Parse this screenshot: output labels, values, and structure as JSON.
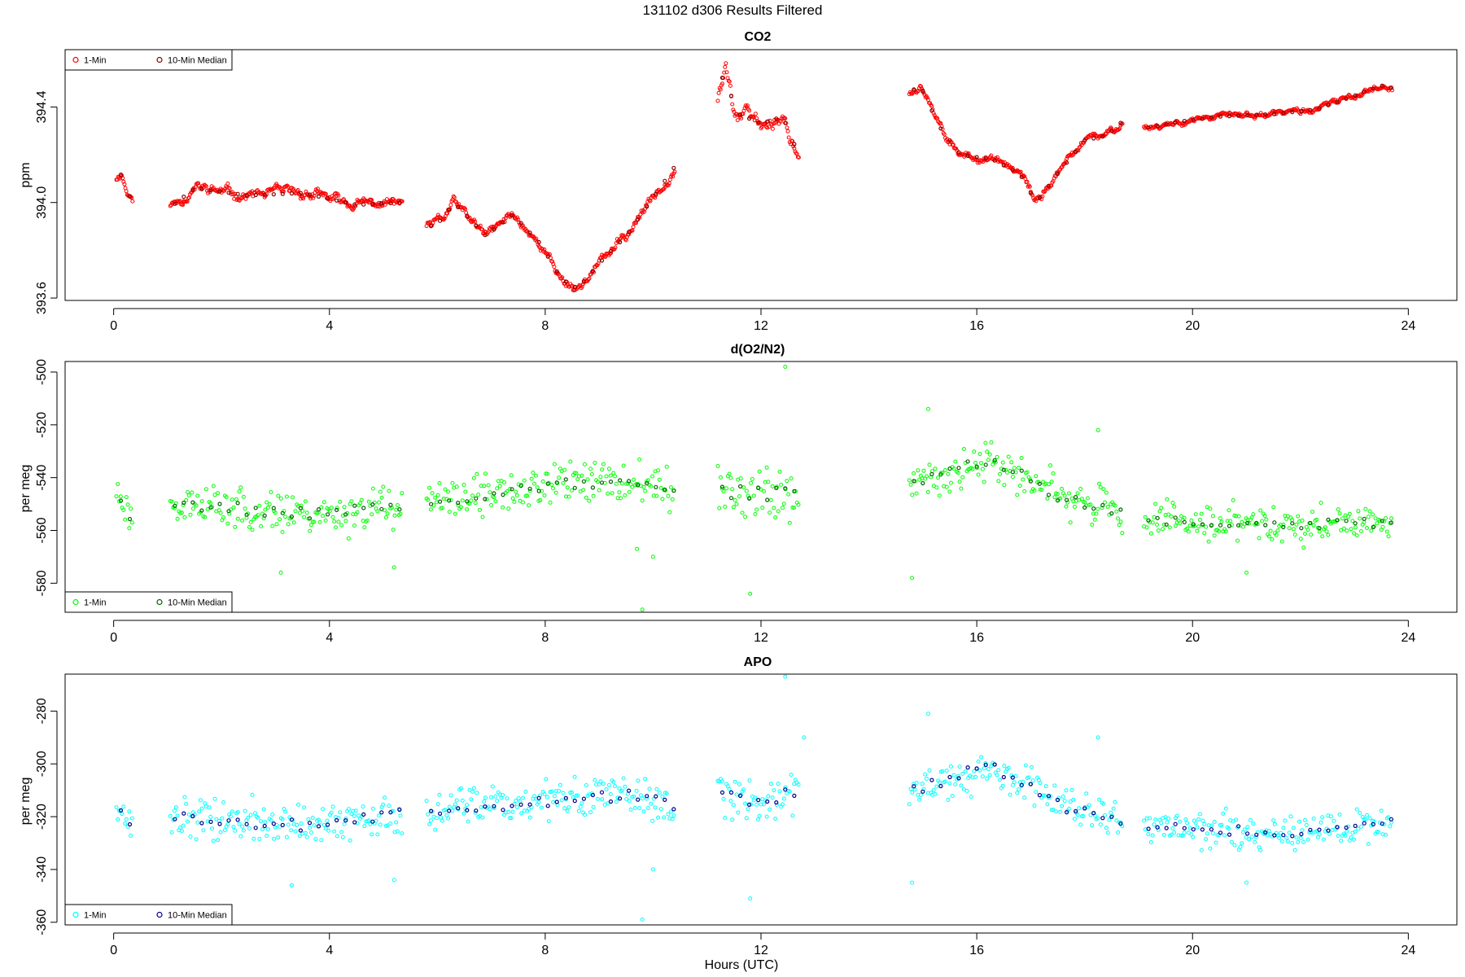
{
  "figure": {
    "title": "131102   d306   Results Filtered",
    "xlabel": "Hours (UTC)"
  },
  "chart_data": [
    {
      "type": "scatter",
      "title": "CO2",
      "ylabel": "ppm",
      "xlim": [
        -0.9,
        24.9
      ],
      "ylim": [
        393.59,
        394.64
      ],
      "xticks": [
        0,
        4,
        8,
        12,
        16,
        20,
        24
      ],
      "yticks": [
        393.6,
        394.0,
        394.4
      ],
      "ytick_labels": [
        "393.6",
        "394.0",
        "394.4"
      ],
      "colors": {
        "one_min": "#ff0000",
        "median": "#8b0000"
      },
      "legend": {
        "position": "top-left",
        "entries": [
          "1-Min",
          "10-Min Median"
        ]
      },
      "segments": [
        {
          "start": 0.05,
          "end": 0.35,
          "knots": [
            [
              0.05,
              394.1
            ],
            [
              0.15,
              394.12
            ],
            [
              0.25,
              394.04
            ],
            [
              0.35,
              394.01
            ]
          ],
          "noise": 0.015
        },
        {
          "start": 1.05,
          "end": 5.35,
          "knots": [
            [
              1.05,
              393.98
            ],
            [
              1.5,
              394.06
            ],
            [
              2.5,
              394.03
            ],
            [
              3.5,
              394.04
            ],
            [
              4.5,
              393.99
            ],
            [
              5.35,
              394.0
            ]
          ],
          "noise": 0.028
        },
        {
          "start": 5.8,
          "end": 10.4,
          "knots": [
            [
              5.8,
              393.89
            ],
            [
              6.1,
              393.93
            ],
            [
              6.3,
              394.0
            ],
            [
              6.9,
              393.86
            ],
            [
              7.4,
              393.95
            ],
            [
              7.9,
              393.83
            ],
            [
              8.3,
              393.68
            ],
            [
              8.6,
              393.64
            ],
            [
              9.1,
              393.77
            ],
            [
              9.5,
              393.86
            ],
            [
              10.0,
              394.02
            ],
            [
              10.4,
              394.15
            ]
          ],
          "noise": 0.025
        },
        {
          "start": 11.2,
          "end": 12.7,
          "knots": [
            [
              11.2,
              394.45
            ],
            [
              11.35,
              394.58
            ],
            [
              11.5,
              394.38
            ],
            [
              12.0,
              394.33
            ],
            [
              12.4,
              394.36
            ],
            [
              12.7,
              394.2
            ]
          ],
          "noise": 0.04
        },
        {
          "start": 14.75,
          "end": 18.7,
          "knots": [
            [
              14.75,
              394.46
            ],
            [
              14.95,
              394.49
            ],
            [
              15.3,
              394.32
            ],
            [
              15.7,
              394.2
            ],
            [
              16.3,
              394.18
            ],
            [
              16.8,
              394.12
            ],
            [
              17.1,
              394.0
            ],
            [
              17.5,
              394.12
            ],
            [
              18.0,
              394.26
            ],
            [
              18.4,
              394.28
            ],
            [
              18.7,
              394.34
            ]
          ],
          "noise": 0.02
        },
        {
          "start": 19.1,
          "end": 23.7,
          "knots": [
            [
              19.1,
              394.31
            ],
            [
              19.8,
              394.34
            ],
            [
              20.5,
              394.36
            ],
            [
              21.5,
              394.37
            ],
            [
              22.3,
              394.39
            ],
            [
              22.8,
              394.43
            ],
            [
              23.5,
              394.49
            ],
            [
              23.7,
              394.48
            ]
          ],
          "noise": 0.015
        }
      ],
      "outliers": [],
      "seed": 11
    },
    {
      "type": "scatter",
      "title": "d(O2/N2)",
      "ylabel": "per meg",
      "xlim": [
        -0.9,
        24.9
      ],
      "ylim": [
        -591,
        -496
      ],
      "xticks": [
        0,
        4,
        8,
        12,
        16,
        20,
        24
      ],
      "yticks": [
        -580,
        -560,
        -540,
        -520,
        -500
      ],
      "ytick_labels": [
        "-580",
        "-560",
        "-540",
        "-520",
        "-500"
      ],
      "colors": {
        "one_min": "#00ff00",
        "median": "#006400"
      },
      "legend": {
        "position": "bottom-left",
        "entries": [
          "1-Min",
          "10-Min Median"
        ]
      },
      "segments": [
        {
          "start": 0.05,
          "end": 0.35,
          "knots": [
            [
              0.05,
              -545
            ],
            [
              0.35,
              -556
            ]
          ],
          "noise": 6
        },
        {
          "start": 1.05,
          "end": 5.35,
          "knots": [
            [
              1.05,
              -550
            ],
            [
              2.5,
              -552
            ],
            [
              4.0,
              -554
            ],
            [
              5.35,
              -550
            ]
          ],
          "noise": 7
        },
        {
          "start": 5.8,
          "end": 10.4,
          "knots": [
            [
              5.8,
              -550
            ],
            [
              7.0,
              -546
            ],
            [
              8.5,
              -542
            ],
            [
              9.8,
              -542
            ],
            [
              10.4,
              -546
            ]
          ],
          "noise": 7
        },
        {
          "start": 11.2,
          "end": 12.7,
          "knots": [
            [
              11.2,
              -545
            ],
            [
              12.0,
              -546
            ],
            [
              12.7,
              -547
            ]
          ],
          "noise": 9
        },
        {
          "start": 14.75,
          "end": 18.7,
          "knots": [
            [
              14.75,
              -543
            ],
            [
              15.5,
              -538
            ],
            [
              16.2,
              -533
            ],
            [
              17.0,
              -541
            ],
            [
              17.6,
              -548
            ],
            [
              18.7,
              -553
            ]
          ],
          "noise": 7
        },
        {
          "start": 19.1,
          "end": 23.7,
          "knots": [
            [
              19.1,
              -556
            ],
            [
              20.5,
              -557
            ],
            [
              22.0,
              -558
            ],
            [
              23.7,
              -557
            ]
          ],
          "noise": 6
        }
      ],
      "outliers": [
        [
          12.45,
          -498
        ],
        [
          9.8,
          -590
        ],
        [
          11.8,
          -584
        ],
        [
          14.8,
          -578
        ],
        [
          15.1,
          -514
        ],
        [
          3.1,
          -576
        ],
        [
          9.7,
          -567
        ],
        [
          10.0,
          -570
        ],
        [
          18.25,
          -522
        ],
        [
          21.0,
          -576
        ],
        [
          5.2,
          -574
        ]
      ],
      "seed": 23
    },
    {
      "type": "scatter",
      "title": "APO",
      "ylabel": "per meg",
      "xlim": [
        -0.9,
        24.9
      ],
      "ylim": [
        -361,
        -266
      ],
      "xticks": [
        0,
        4,
        8,
        12,
        16,
        20,
        24
      ],
      "yticks": [
        -360,
        -340,
        -320,
        -300,
        -280
      ],
      "ytick_labels": [
        "-360",
        "-340",
        "-320",
        "-300",
        "-280"
      ],
      "colors": {
        "one_min": "#00ffff",
        "median": "#00008b"
      },
      "legend": {
        "position": "bottom-left",
        "entries": [
          "1-Min",
          "10-Min Median"
        ]
      },
      "segments": [
        {
          "start": 0.05,
          "end": 0.35,
          "knots": [
            [
              0.05,
              -314
            ],
            [
              0.35,
              -325
            ]
          ],
          "noise": 5
        },
        {
          "start": 1.05,
          "end": 5.35,
          "knots": [
            [
              1.05,
              -320
            ],
            [
              2.5,
              -322
            ],
            [
              4.0,
              -324
            ],
            [
              5.35,
              -318
            ]
          ],
          "noise": 7
        },
        {
          "start": 5.8,
          "end": 10.4,
          "knots": [
            [
              5.8,
              -318
            ],
            [
              7.0,
              -316
            ],
            [
              8.5,
              -313
            ],
            [
              9.8,
              -312
            ],
            [
              10.4,
              -316
            ]
          ],
          "noise": 7
        },
        {
          "start": 11.2,
          "end": 12.7,
          "knots": [
            [
              11.2,
              -312
            ],
            [
              12.0,
              -314
            ],
            [
              12.7,
              -310
            ]
          ],
          "noise": 9
        },
        {
          "start": 14.75,
          "end": 18.7,
          "knots": [
            [
              14.75,
              -310
            ],
            [
              15.5,
              -306
            ],
            [
              16.2,
              -300
            ],
            [
              17.0,
              -308
            ],
            [
              17.6,
              -316
            ],
            [
              18.7,
              -322
            ]
          ],
          "noise": 7
        },
        {
          "start": 19.1,
          "end": 23.7,
          "knots": [
            [
              19.1,
              -324
            ],
            [
              20.5,
              -325
            ],
            [
              22.0,
              -326
            ],
            [
              23.7,
              -322
            ]
          ],
          "noise": 6
        }
      ],
      "outliers": [
        [
          12.45,
          -267
        ],
        [
          9.8,
          -359
        ],
        [
          11.8,
          -351
        ],
        [
          14.8,
          -345
        ],
        [
          15.1,
          -281
        ],
        [
          3.3,
          -346
        ],
        [
          5.2,
          -344
        ],
        [
          10.0,
          -340
        ],
        [
          18.25,
          -290
        ],
        [
          21.0,
          -345
        ],
        [
          12.8,
          -290
        ]
      ],
      "seed": 37
    }
  ]
}
